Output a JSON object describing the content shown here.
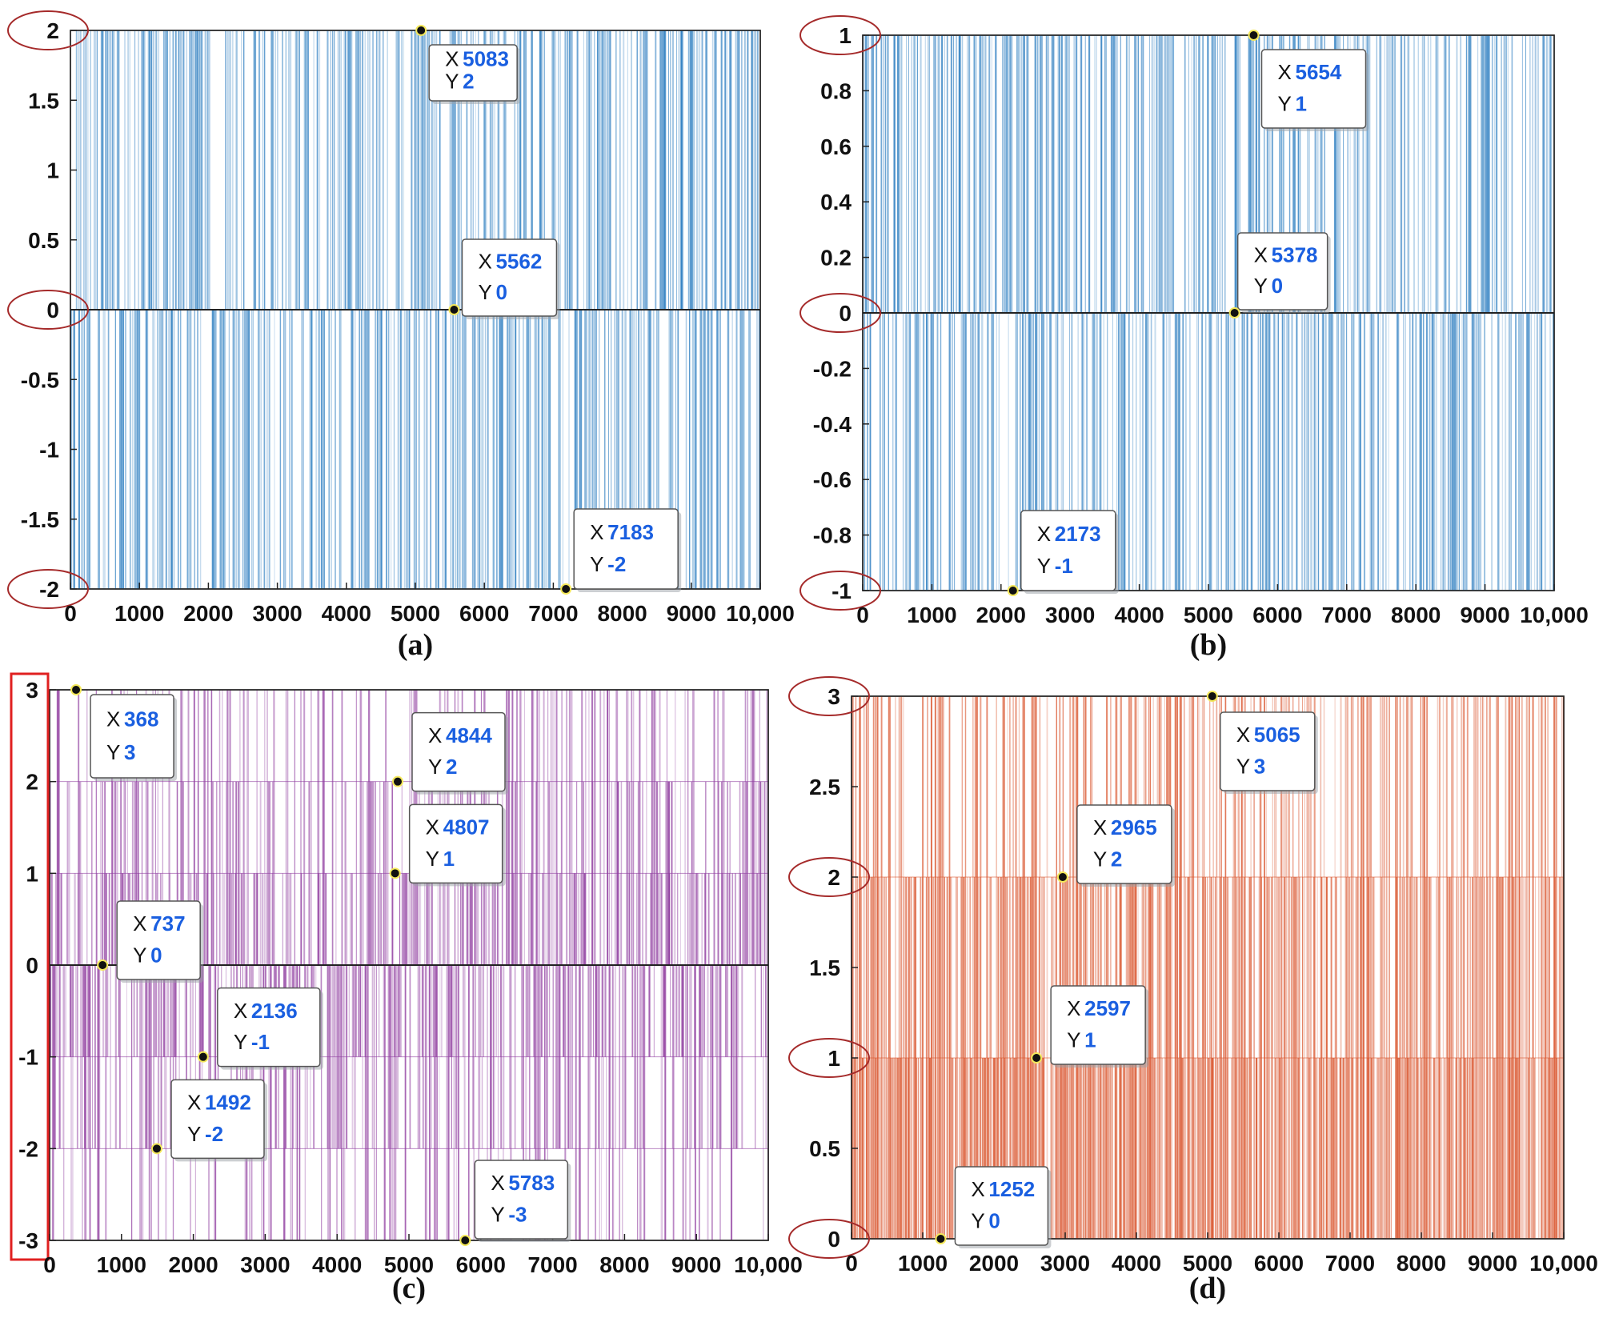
{
  "chart_data": [
    {
      "type": "line",
      "subtype": "discrete-sequence",
      "panel_label": "(a)",
      "color": "#2f7fc1",
      "x_ticks": [
        "0",
        "1000",
        "2000",
        "3000",
        "4000",
        "5000",
        "6000",
        "7000",
        "8000",
        "9000",
        "10,000"
      ],
      "y_ticks": [
        "2",
        "1.5",
        "1",
        "0.5",
        "0",
        "-0.5",
        "-1",
        "-1.5",
        "-2"
      ],
      "xlim": [
        0,
        10000
      ],
      "ylim": [
        -2,
        2
      ],
      "levels": [
        -2,
        0,
        2
      ],
      "circled_ticks": [
        "2",
        "0",
        "-2"
      ],
      "datatips": [
        {
          "x": 5083,
          "y": 2,
          "x_text": "5083",
          "y_text": "2"
        },
        {
          "x": 5562,
          "y": 0,
          "x_text": "5562",
          "y_text": "0"
        },
        {
          "x": 7183,
          "y": -2,
          "x_text": "7183",
          "y_text": "-2"
        }
      ]
    },
    {
      "type": "line",
      "subtype": "discrete-sequence",
      "panel_label": "(b)",
      "color": "#2f7fc1",
      "x_ticks": [
        "0",
        "1000",
        "2000",
        "3000",
        "4000",
        "5000",
        "6000",
        "7000",
        "8000",
        "9000",
        "10,000"
      ],
      "y_ticks": [
        "1",
        "0.8",
        "0.6",
        "0.4",
        "0.2",
        "0",
        "-0.2",
        "-0.4",
        "-0.6",
        "-0.8",
        "-1"
      ],
      "xlim": [
        0,
        10000
      ],
      "ylim": [
        -1,
        1
      ],
      "levels": [
        -1,
        0,
        1
      ],
      "circled_ticks": [
        "1",
        "0",
        "-1"
      ],
      "datatips": [
        {
          "x": 5654,
          "y": 1,
          "x_text": "5654",
          "y_text": "1"
        },
        {
          "x": 5378,
          "y": 0,
          "x_text": "5378",
          "y_text": "0"
        },
        {
          "x": 2173,
          "y": -1,
          "x_text": "2173",
          "y_text": "-1"
        }
      ]
    },
    {
      "type": "line",
      "subtype": "discrete-sequence",
      "panel_label": "(c)",
      "color": "#8e3a9e",
      "x_ticks": [
        "0",
        "1000",
        "2000",
        "3000",
        "4000",
        "5000",
        "6000",
        "7000",
        "8000",
        "9000",
        "10,000"
      ],
      "y_ticks": [
        "3",
        "2",
        "1",
        "0",
        "-1",
        "-2",
        "-3"
      ],
      "xlim": [
        0,
        10000
      ],
      "ylim": [
        -3,
        3
      ],
      "levels": [
        -3,
        -2,
        -1,
        0,
        1,
        2,
        3
      ],
      "boxed_axis": true,
      "datatips": [
        {
          "x": 368,
          "y": 3,
          "x_text": "368",
          "y_text": "3"
        },
        {
          "x": 4844,
          "y": 2,
          "x_text": "4844",
          "y_text": "2"
        },
        {
          "x": 4807,
          "y": 1,
          "x_text": "4807",
          "y_text": "1"
        },
        {
          "x": 737,
          "y": 0,
          "x_text": "737",
          "y_text": "0"
        },
        {
          "x": 2136,
          "y": -1,
          "x_text": "2136",
          "y_text": "-1"
        },
        {
          "x": 1492,
          "y": -2,
          "x_text": "1492",
          "y_text": "-2"
        },
        {
          "x": 5783,
          "y": -3,
          "x_text": "5783",
          "y_text": "-3"
        }
      ]
    },
    {
      "type": "line",
      "subtype": "discrete-sequence",
      "panel_label": "(d)",
      "color": "#d9532b",
      "x_ticks": [
        "0",
        "1000",
        "2000",
        "3000",
        "4000",
        "5000",
        "6000",
        "7000",
        "8000",
        "9000",
        "10,000"
      ],
      "y_ticks": [
        "3",
        "2.5",
        "2",
        "1.5",
        "1",
        "0.5",
        "0"
      ],
      "xlim": [
        0,
        10000
      ],
      "ylim": [
        0,
        3
      ],
      "levels": [
        0,
        1,
        2,
        3
      ],
      "circled_ticks": [
        "3",
        "2",
        "1",
        "0"
      ],
      "datatips": [
        {
          "x": 5065,
          "y": 3,
          "x_text": "5065",
          "y_text": "3"
        },
        {
          "x": 2965,
          "y": 2,
          "x_text": "2965",
          "y_text": "2"
        },
        {
          "x": 2597,
          "y": 1,
          "x_text": "2597",
          "y_text": "1"
        },
        {
          "x": 1252,
          "y": 0,
          "x_text": "1252",
          "y_text": "0"
        }
      ]
    }
  ],
  "labels": {
    "x_key": "X",
    "y_key": "Y"
  },
  "colors": {
    "circle": "#a52a2a",
    "box": "#e02020",
    "axis": "#222222",
    "tip_value": "#1a5fe0"
  }
}
